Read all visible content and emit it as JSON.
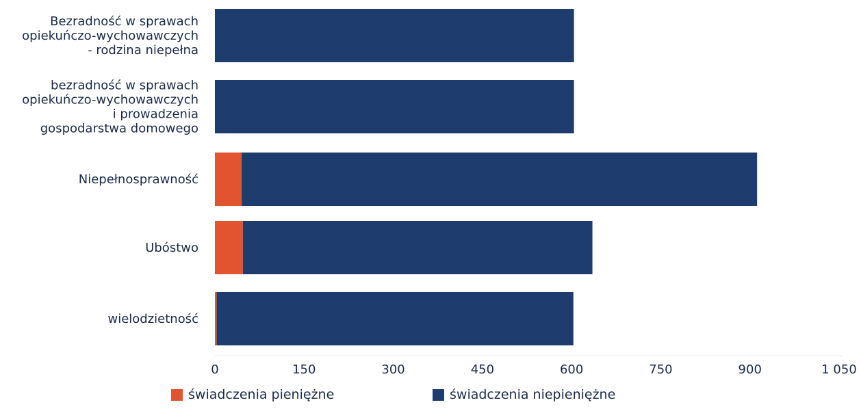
{
  "chart_data": {
    "type": "bar",
    "orientation": "horizontal",
    "stacked": true,
    "categories": [
      "Bezradność w sprawach\nopiekuńczo-wychowawczych\n- rodzina niepełna",
      "bezradność w sprawach\nopiekuńczo-wychowawczych\ni prowadzenia\ngospodarstwa domowego",
      "Niepełnosprawność",
      "Ubóstwo",
      "wielodzietność"
    ],
    "series": [
      {
        "name": "świadczenia pieniężne",
        "color": "#e2532f",
        "values": [
          0,
          0,
          45,
          47,
          3
        ]
      },
      {
        "name": "świadczenia niepieniężne",
        "color": "#1e3d6e",
        "values": [
          604,
          604,
          867,
          588,
          600
        ]
      }
    ],
    "x_ticks": [
      "0",
      "150",
      "300",
      "450",
      "600",
      "750",
      "900",
      "1 050"
    ],
    "xlim": [
      0,
      1050
    ],
    "grid": false,
    "legend_position": "bottom"
  }
}
